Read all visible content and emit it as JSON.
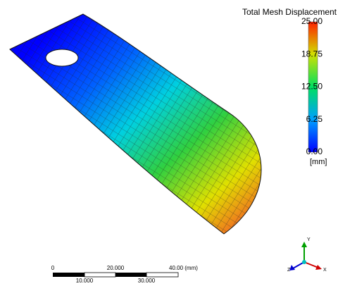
{
  "legend": {
    "title": "Total Mesh Displacement",
    "labels": [
      "25.00",
      "18.75",
      "12.50",
      "6.25",
      "0.00"
    ],
    "unit": "[mm]"
  },
  "scale_bar": {
    "top_labels": [
      "0",
      "20.000",
      "40.00 (mm)"
    ],
    "bottom_labels": [
      "10.000",
      "30.000"
    ]
  },
  "triad": {
    "y": "Y",
    "z": "Z",
    "x": "X"
  }
}
